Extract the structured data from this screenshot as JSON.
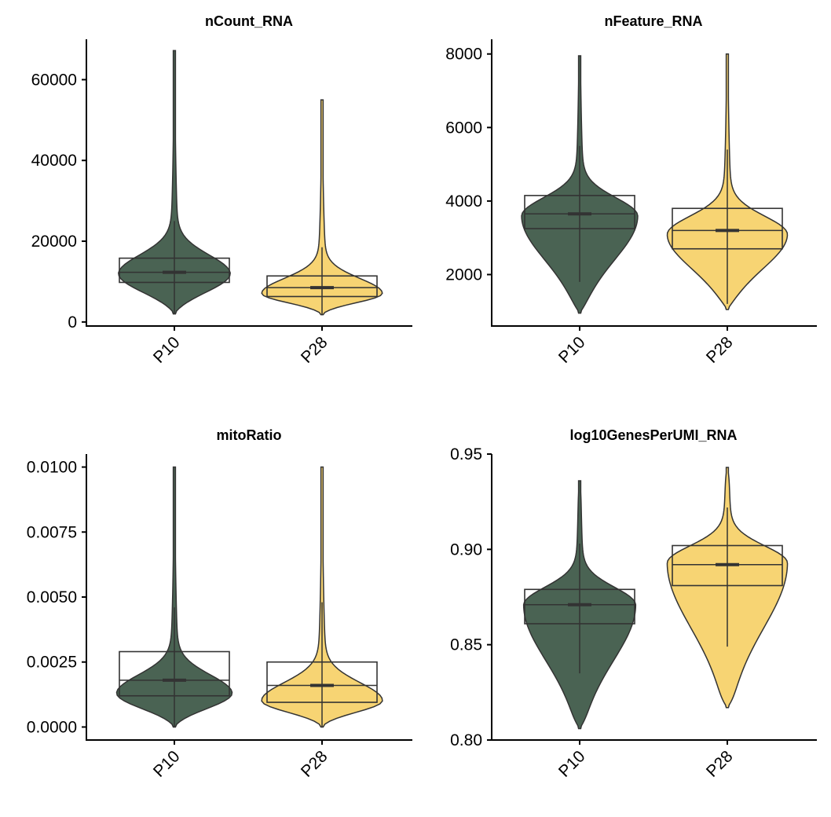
{
  "chart_data": [
    {
      "type": "violin",
      "title": "nCount_RNA",
      "xlabel": "",
      "ylabel": "",
      "categories": [
        "P10",
        "P28"
      ],
      "colors": [
        "#4a6353",
        "#f7d473"
      ],
      "ylim": [
        -1000,
        70000
      ],
      "yticks": [
        0,
        20000,
        40000,
        60000
      ],
      "ytick_labels": [
        "0",
        "20000",
        "40000",
        "60000"
      ],
      "violin": [
        {
          "min": 2000,
          "max": 67200,
          "mode": 12000,
          "width": 0.82
        },
        {
          "min": 1800,
          "max": 55000,
          "mode": 7000,
          "width": 0.9
        }
      ],
      "box": [
        {
          "q1": 9800,
          "median": 12300,
          "q3": 15800
        },
        {
          "q1": 6300,
          "median": 8500,
          "q3": 11400
        }
      ],
      "whisker": [
        {
          "low": 2100,
          "high": 25000
        },
        {
          "low": 1800,
          "high": 18500
        }
      ]
    },
    {
      "type": "violin",
      "title": "nFeature_RNA",
      "xlabel": "",
      "ylabel": "",
      "categories": [
        "P10",
        "P28"
      ],
      "colors": [
        "#4a6353",
        "#f7d473"
      ],
      "ylim": [
        600,
        8400
      ],
      "yticks": [
        2000,
        4000,
        6000,
        8000
      ],
      "ytick_labels": [
        "2000",
        "4000",
        "6000",
        "8000"
      ],
      "violin": [
        {
          "min": 950,
          "max": 7950,
          "mode": 3600,
          "width": 0.85
        },
        {
          "min": 1050,
          "max": 8000,
          "mode": 3100,
          "width": 0.88
        }
      ],
      "box": [
        {
          "q1": 3250,
          "median": 3650,
          "q3": 4150
        },
        {
          "q1": 2700,
          "median": 3200,
          "q3": 3800
        }
      ],
      "whisker": [
        {
          "low": 1800,
          "high": 5500
        },
        {
          "low": 1200,
          "high": 5400
        }
      ]
    },
    {
      "type": "violin",
      "title": "mitoRatio",
      "xlabel": "",
      "ylabel": "",
      "categories": [
        "P10",
        "P28"
      ],
      "colors": [
        "#4a6353",
        "#f7d473"
      ],
      "ylim": [
        -0.0005,
        0.0105
      ],
      "yticks": [
        0.0,
        0.0025,
        0.005,
        0.0075,
        0.01
      ],
      "ytick_labels": [
        "0.0000",
        "0.0025",
        "0.0050",
        "0.0075",
        "0.0100"
      ],
      "violin": [
        {
          "min": 0.0,
          "max": 0.01,
          "mode": 0.0013,
          "width": 0.85
        },
        {
          "min": 0.0,
          "max": 0.01,
          "mode": 0.001,
          "width": 0.9
        }
      ],
      "box": [
        {
          "q1": 0.0012,
          "median": 0.0018,
          "q3": 0.0029
        },
        {
          "q1": 0.00095,
          "median": 0.0016,
          "q3": 0.0025
        }
      ],
      "whisker": [
        {
          "low": 0.0,
          "high": 0.0046
        },
        {
          "low": 0.0,
          "high": 0.0048
        }
      ]
    },
    {
      "type": "violin",
      "title": "log10GenesPerUMI_RNA",
      "xlabel": "",
      "ylabel": "",
      "categories": [
        "P10",
        "P28"
      ],
      "colors": [
        "#4a6353",
        "#f7d473"
      ],
      "ylim": [
        0.8,
        0.95
      ],
      "yticks": [
        0.8,
        0.85,
        0.9,
        0.95
      ],
      "ytick_labels": [
        "0.80",
        "0.85",
        "0.90",
        "0.95"
      ],
      "violin": [
        {
          "min": 0.806,
          "max": 0.936,
          "mode": 0.871,
          "width": 0.82
        },
        {
          "min": 0.817,
          "max": 0.943,
          "mode": 0.893,
          "width": 0.88
        }
      ],
      "box": [
        {
          "q1": 0.861,
          "median": 0.871,
          "q3": 0.879
        },
        {
          "q1": 0.881,
          "median": 0.892,
          "q3": 0.902
        }
      ],
      "whisker": [
        {
          "low": 0.835,
          "high": 0.903
        },
        {
          "low": 0.849,
          "high": 0.922
        }
      ]
    }
  ]
}
